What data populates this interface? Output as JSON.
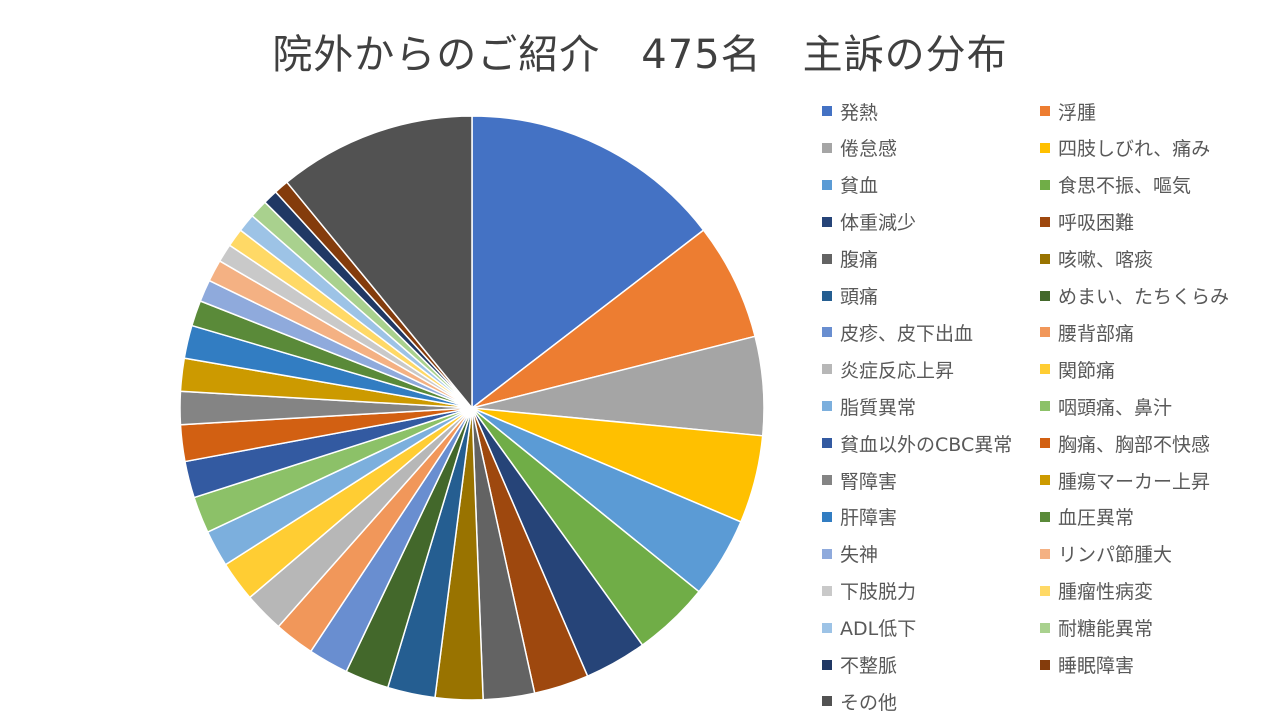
{
  "chart_data": {
    "type": "pie",
    "title": "院外からのご紹介　475名　主訴の分布",
    "legend_position": "right",
    "start_angle_deg": 0,
    "direction": "clockwise",
    "slices": [
      {
        "label": "発熱",
        "value": 72,
        "color": "#4472C4"
      },
      {
        "label": "浮腫",
        "value": 32,
        "color": "#ED7D31"
      },
      {
        "label": "倦怠感",
        "value": 27,
        "color": "#A5A5A5"
      },
      {
        "label": "四肢しびれ、痛み",
        "value": 24,
        "color": "#FFC000"
      },
      {
        "label": "貧血",
        "value": 22,
        "color": "#5B9BD5"
      },
      {
        "label": "食思不振、嘔気",
        "value": 21,
        "color": "#70AD47"
      },
      {
        "label": "体重減少",
        "value": 17,
        "color": "#264478"
      },
      {
        "label": "呼吸困難",
        "value": 15,
        "color": "#9E480E"
      },
      {
        "label": "腹痛",
        "value": 14,
        "color": "#636363"
      },
      {
        "label": "咳嗽、喀痰",
        "value": 13,
        "color": "#997300"
      },
      {
        "label": "頭痛",
        "value": 13,
        "color": "#255E91"
      },
      {
        "label": "めまい、たちくらみ",
        "value": 12,
        "color": "#43682B"
      },
      {
        "label": "皮疹、皮下出血",
        "value": 11,
        "color": "#698ED0"
      },
      {
        "label": "腰背部痛",
        "value": 11,
        "color": "#F1975A"
      },
      {
        "label": "炎症反応上昇",
        "value": 11,
        "color": "#B7B7B7"
      },
      {
        "label": "関節痛",
        "value": 11,
        "color": "#FFCD33"
      },
      {
        "label": "脂質異常",
        "value": 10,
        "color": "#7CAFDD"
      },
      {
        "label": "咽頭痛、鼻汁",
        "value": 10,
        "color": "#8CC168"
      },
      {
        "label": "貧血以外のCBC異常",
        "value": 10,
        "color": "#335AA1"
      },
      {
        "label": "胸痛、胸部不快感",
        "value": 10,
        "color": "#D26012"
      },
      {
        "label": "腎障害",
        "value": 9,
        "color": "#848484"
      },
      {
        "label": "腫瘍マーカー上昇",
        "value": 9,
        "color": "#CC9A00"
      },
      {
        "label": "肝障害",
        "value": 9,
        "color": "#327DC2"
      },
      {
        "label": "血圧異常",
        "value": 7,
        "color": "#5A8A39"
      },
      {
        "label": "失神",
        "value": 6,
        "color": "#8FAADC"
      },
      {
        "label": "リンパ節腫大",
        "value": 6,
        "color": "#F4B183"
      },
      {
        "label": "下肢脱力",
        "value": 5,
        "color": "#C9C9C9"
      },
      {
        "label": "腫瘤性病変",
        "value": 5,
        "color": "#FFD966"
      },
      {
        "label": "ADL低下",
        "value": 5,
        "color": "#9DC3E6"
      },
      {
        "label": "耐糖能異常",
        "value": 5,
        "color": "#A9D18E"
      },
      {
        "label": "不整脈",
        "value": 4,
        "color": "#203864"
      },
      {
        "label": "睡眠障害",
        "value": 4,
        "color": "#843C0C"
      },
      {
        "label": "その他",
        "value": 54,
        "color": "#525252"
      }
    ]
  }
}
